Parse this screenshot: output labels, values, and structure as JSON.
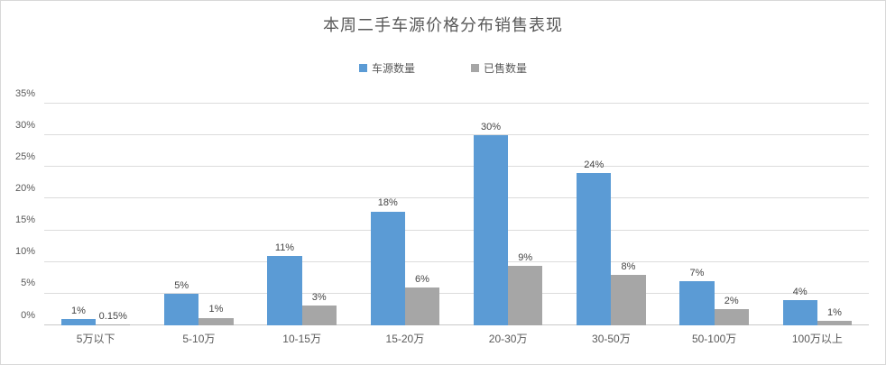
{
  "panel": {
    "title": "本周二手车源价格分布销售表现"
  },
  "chart_data": {
    "type": "bar",
    "title": "本周二手车源价格分布销售表现",
    "categories": [
      "5万以下",
      "5-10万",
      "10-15万",
      "15-20万",
      "20-30万",
      "30-50万",
      "50-100万",
      "100万以上"
    ],
    "series": [
      {
        "name": "车源数量",
        "color": "#5B9BD5",
        "values": [
          1,
          5,
          11,
          18,
          30,
          24,
          7,
          4
        ],
        "labels": [
          "1%",
          "5%",
          "11%",
          "18%",
          "30%",
          "24%",
          "7%",
          "4%"
        ]
      },
      {
        "name": "已售数量",
        "color": "#A6A6A6",
        "values": [
          0.15,
          1.2,
          3.1,
          6,
          9.4,
          8,
          2.5,
          0.7
        ],
        "labels": [
          "0.15%",
          "1%",
          "3%",
          "6%",
          "9%",
          "8%",
          "2%",
          "1%"
        ]
      }
    ],
    "xlabel": "",
    "ylabel": "",
    "ylim": [
      0,
      35
    ],
    "ytick_step": 5,
    "yticks": [
      "0%",
      "5%",
      "10%",
      "15%",
      "20%",
      "25%",
      "30%",
      "35%"
    ],
    "grid": true,
    "legend_position": "top-center"
  }
}
